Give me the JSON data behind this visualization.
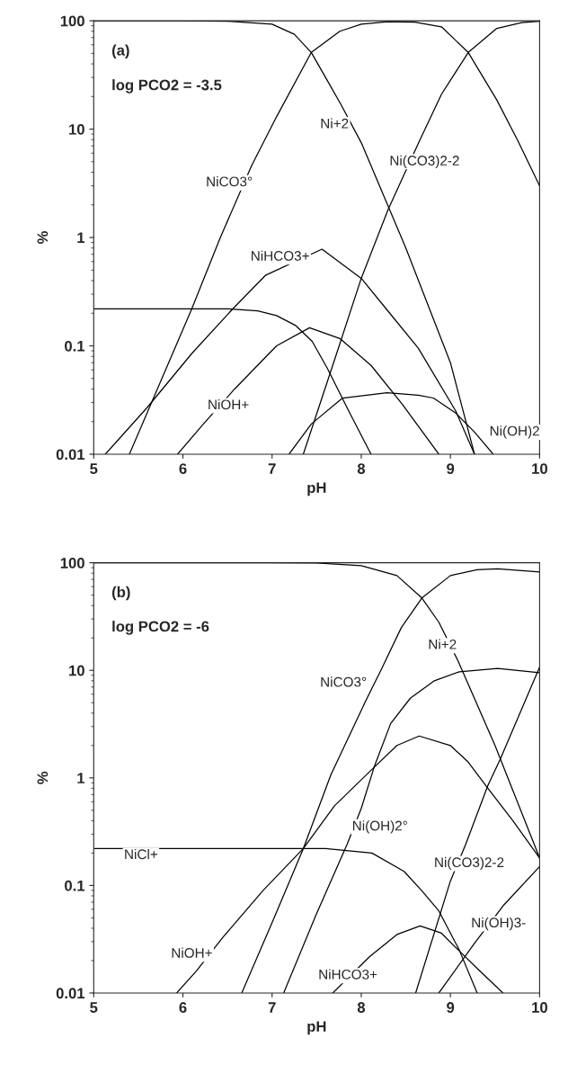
{
  "chart_data": [
    {
      "type": "line",
      "xlabel": "pH",
      "ylabel": "%",
      "annotations": [
        "(a)",
        "log PCO2 = -3.5"
      ],
      "log": "y",
      "xlim": [
        5,
        10
      ],
      "xticks": [
        5,
        6,
        7,
        8,
        9,
        10
      ],
      "ylim": [
        0.01,
        100
      ],
      "yticks": [
        0.01,
        0.1,
        1,
        10,
        100
      ],
      "series": [
        {
          "name": "Ni+2",
          "color": "#000000",
          "x": [
            5,
            6,
            6.5,
            7,
            7.25,
            7.44,
            7.6,
            7.77,
            8,
            8.5,
            9,
            9.27
          ],
          "values": [
            100,
            100,
            99,
            93,
            75,
            51,
            30,
            17,
            7.5,
            0.8,
            0.07,
            0.01
          ]
        },
        {
          "name": "NiCO3°",
          "color": "#000000",
          "x": [
            5.4,
            6.1,
            6.42,
            6.77,
            7.05,
            7.44,
            7.76,
            8,
            8.3,
            8.6,
            8.9,
            9.2,
            9.52,
            9.75,
            10
          ],
          "values": [
            0.01,
            0.22,
            1,
            4.6,
            13,
            51,
            80,
            93,
            98,
            97,
            88,
            51,
            18.6,
            8,
            3
          ]
        },
        {
          "name": "Ni(CO3)2-2",
          "color": "#000000",
          "x": [
            7.35,
            7.7,
            8,
            8.3,
            8.65,
            8.9,
            9.2,
            9.52,
            9.8,
            10
          ],
          "values": [
            0.01,
            0.074,
            0.42,
            1.8,
            7.7,
            21,
            51,
            85,
            96,
            99
          ]
        },
        {
          "name": "NiHCO3+",
          "color": "#000000",
          "x": [
            5.13,
            5.6,
            6.1,
            6.56,
            6.93,
            7.56,
            8,
            8.32,
            8.64,
            9.06,
            9.27
          ],
          "values": [
            0.01,
            0.027,
            0.085,
            0.22,
            0.45,
            0.78,
            0.42,
            0.2,
            0.095,
            0.025,
            0.01
          ]
        },
        {
          "color": "#000000",
          "x": [
            5,
            6,
            6.5,
            6.84,
            7.05,
            7.26,
            7.45,
            7.62,
            7.86,
            8.11
          ],
          "values": [
            0.22,
            0.22,
            0.22,
            0.21,
            0.19,
            0.155,
            0.11,
            0.062,
            0.025,
            0.01
          ]
        },
        {
          "name": "NiOH+",
          "color": "#000000",
          "x": [
            5.94,
            6.23,
            6.58,
            7.05,
            7.42,
            7.76,
            8.11,
            8.46,
            8.87
          ],
          "values": [
            0.01,
            0.019,
            0.04,
            0.1,
            0.147,
            0.117,
            0.066,
            0.029,
            0.01
          ]
        },
        {
          "name": "Ni(OH)2",
          "color": "#000000",
          "x": [
            7.19,
            7.44,
            7.79,
            8.29,
            8.64,
            8.81,
            9.06,
            9.27,
            9.48
          ],
          "values": [
            0.01,
            0.019,
            0.033,
            0.037,
            0.035,
            0.033,
            0.024,
            0.016,
            0.01
          ]
        }
      ]
    },
    {
      "type": "line",
      "xlabel": "pH",
      "ylabel": "%",
      "annotations": [
        "(b)",
        "log PCO2 = -6"
      ],
      "log": "y",
      "xlim": [
        5,
        10
      ],
      "xticks": [
        5,
        6,
        7,
        8,
        9,
        10
      ],
      "ylim": [
        0.01,
        100
      ],
      "yticks": [
        0.01,
        0.1,
        1,
        10,
        100
      ],
      "series": [
        {
          "name": "Ni+2",
          "color": "#000000",
          "x": [
            5,
            7,
            7.5,
            8,
            8.4,
            8.68,
            8.87,
            9.09,
            9.5,
            10
          ],
          "values": [
            100,
            100,
            99.5,
            94,
            76,
            47,
            28,
            12,
            2,
            0.18
          ]
        },
        {
          "name": "NiCO3°",
          "color": "#000000",
          "x": [
            6.66,
            7.0,
            7.35,
            7.66,
            8.05,
            8.22,
            8.45,
            8.68,
            9.0,
            9.3,
            9.53,
            10
          ],
          "values": [
            0.01,
            0.045,
            0.22,
            1.07,
            5.2,
            10,
            25,
            47,
            76,
            86,
            88,
            82
          ]
        },
        {
          "name": "Ni(OH)2°",
          "color": "#000000",
          "x": [
            7.13,
            7.5,
            7.84,
            8.0,
            8.15,
            8.33,
            8.55,
            8.82,
            9.1,
            9.53,
            10
          ],
          "values": [
            0.01,
            0.055,
            0.24,
            0.52,
            1.3,
            3.2,
            5.5,
            8,
            9.7,
            10.4,
            9.5
          ]
        },
        {
          "name": "NiCl+",
          "color": "#000000",
          "x": [
            5,
            7,
            7.6,
            8.12,
            8.48,
            8.68,
            8.87,
            9.1,
            9.3
          ],
          "values": [
            0.22,
            0.22,
            0.22,
            0.2,
            0.135,
            0.089,
            0.058,
            0.025,
            0.01
          ]
        },
        {
          "name": "Ni(CO3)2-2",
          "color": "#000000",
          "x": [
            8.61,
            9.0,
            9.17,
            9.42,
            9.56,
            10
          ],
          "values": [
            0.01,
            0.11,
            0.24,
            0.85,
            1.5,
            10.7
          ]
        },
        {
          "name": "NiOH+",
          "color": "#000000",
          "x": [
            5.93,
            6.15,
            6.45,
            6.9,
            7.35,
            7.7,
            8.12,
            8.4,
            8.65,
            9.0,
            9.2,
            9.42,
            9.7,
            10
          ],
          "values": [
            0.01,
            0.016,
            0.033,
            0.09,
            0.22,
            0.55,
            1.2,
            2.0,
            2.45,
            2.0,
            1.4,
            0.8,
            0.4,
            0.18
          ]
        },
        {
          "name": "Ni(OH)3-",
          "color": "#000000",
          "x": [
            8.87,
            9.27,
            9.6,
            10
          ],
          "values": [
            0.01,
            0.029,
            0.066,
            0.15
          ]
        },
        {
          "name": "NiHCO3+",
          "color": "#000000",
          "x": [
            7.68,
            8.1,
            8.4,
            8.66,
            8.9,
            9.07,
            9.33,
            9.59
          ],
          "values": [
            0.01,
            0.022,
            0.035,
            0.042,
            0.036,
            0.026,
            0.016,
            0.01
          ]
        }
      ]
    }
  ]
}
